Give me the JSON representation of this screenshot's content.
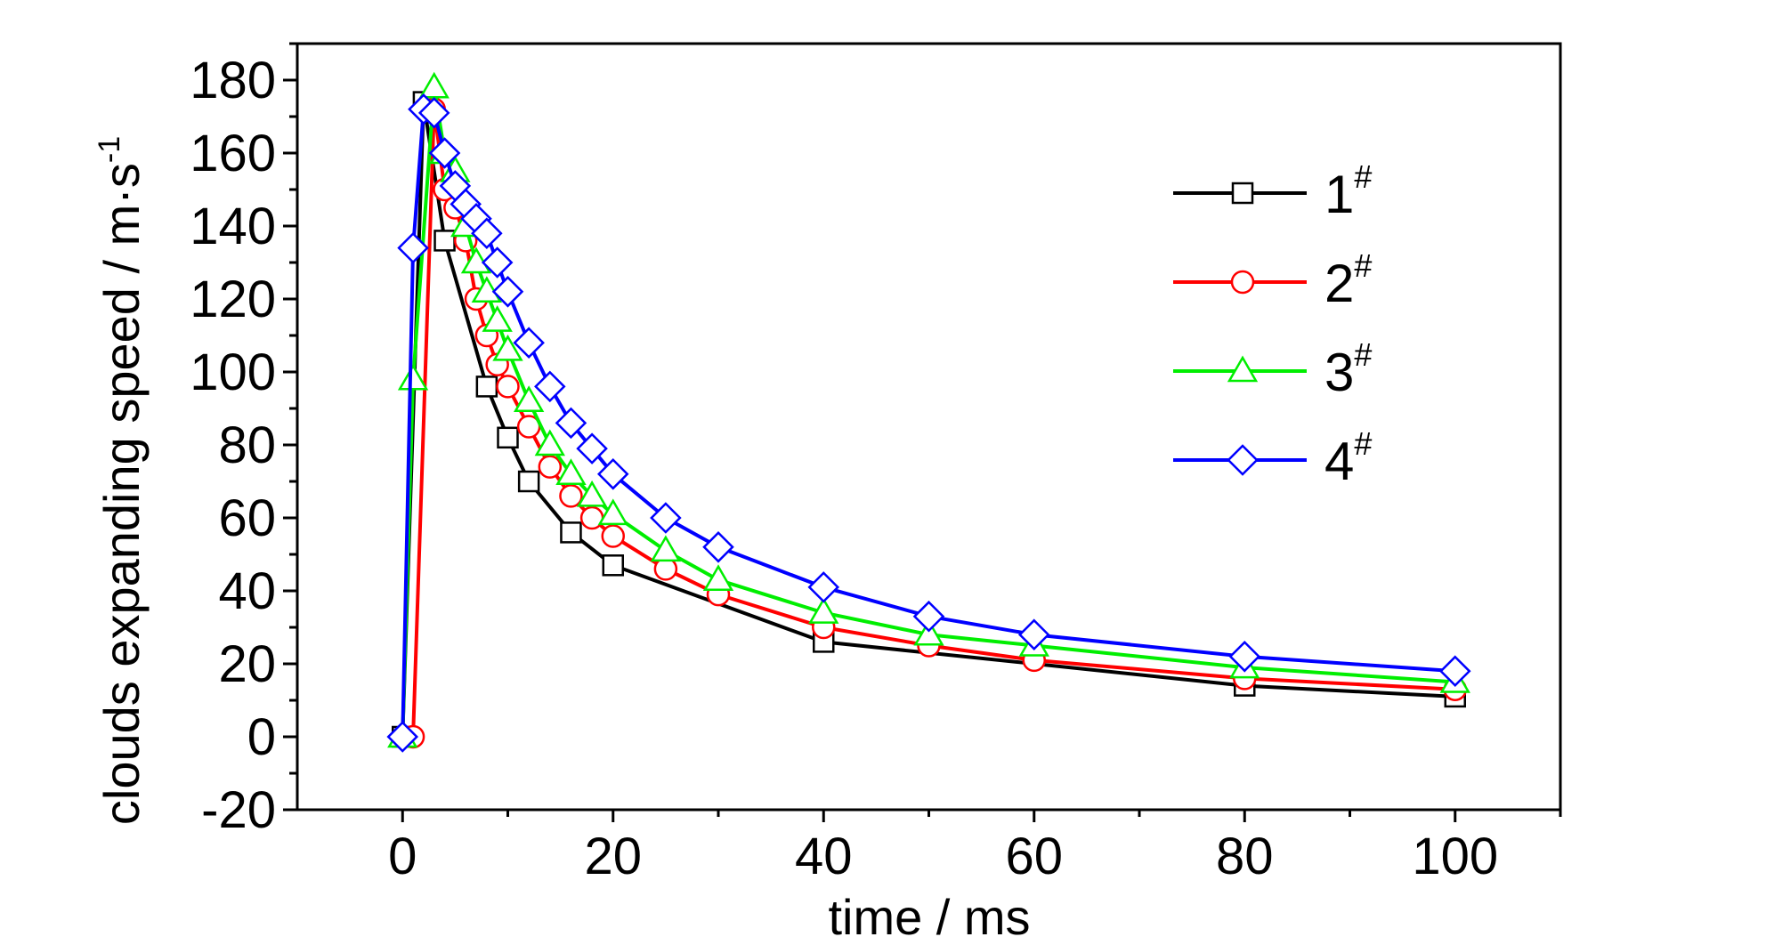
{
  "chart_data": {
    "type": "line",
    "xlabel": "time / ms",
    "ylabel": "clouds expanding speed / m·s",
    "ylabel_superscript": "-1",
    "xlim": [
      -10,
      110
    ],
    "ylim": [
      -20,
      190
    ],
    "xticks": [
      0,
      20,
      40,
      60,
      80,
      100
    ],
    "xtick_labels": [
      "0",
      "20",
      "40",
      "60",
      "80",
      "100"
    ],
    "yticks": [
      -20,
      0,
      20,
      40,
      60,
      80,
      100,
      120,
      140,
      160,
      180
    ],
    "ytick_labels": [
      "-20",
      "0",
      "20",
      "40",
      "60",
      "80",
      "100",
      "120",
      "140",
      "160",
      "180"
    ],
    "grid": false,
    "legend_position": "top-right",
    "series": [
      {
        "name": "1",
        "name_superscript": "#",
        "color": "#000000",
        "marker": "square",
        "x": [
          0,
          2,
          4,
          8,
          10,
          12,
          16,
          20,
          40,
          80,
          100
        ],
        "y": [
          0,
          174,
          136,
          96,
          82,
          70,
          56,
          47,
          26,
          14,
          11
        ]
      },
      {
        "name": "2",
        "name_superscript": "#",
        "color": "#ff0000",
        "marker": "circle",
        "x": [
          1,
          3,
          4,
          5,
          6,
          7,
          8,
          9,
          10,
          12,
          14,
          16,
          18,
          20,
          25,
          30,
          40,
          50,
          60,
          80,
          100
        ],
        "y": [
          0,
          172,
          150,
          145,
          136,
          120,
          110,
          102,
          96,
          85,
          74,
          66,
          60,
          55,
          46,
          39,
          30,
          25,
          21,
          16,
          13
        ]
      },
      {
        "name": "3",
        "name_superscript": "#",
        "color": "#00ee00",
        "marker": "triangle",
        "x": [
          0,
          1,
          3,
          4,
          5,
          6,
          7,
          8,
          9,
          10,
          12,
          14,
          16,
          18,
          20,
          25,
          30,
          40,
          50,
          60,
          80,
          100
        ],
        "y": [
          0,
          98,
          178,
          160,
          155,
          140,
          130,
          122,
          114,
          106,
          92,
          80,
          72,
          66,
          61,
          51,
          43,
          34,
          28,
          25,
          19,
          15
        ]
      },
      {
        "name": "4",
        "name_superscript": "#",
        "color": "#0000ff",
        "marker": "diamond",
        "x": [
          0,
          1,
          2,
          3,
          4,
          5,
          6,
          7,
          8,
          9,
          10,
          12,
          14,
          16,
          18,
          20,
          25,
          30,
          40,
          50,
          60,
          80,
          100
        ],
        "y": [
          0,
          134,
          172,
          171,
          160,
          151,
          146,
          142,
          138,
          130,
          122,
          108,
          96,
          86,
          79,
          72,
          60,
          52,
          41,
          33,
          28,
          22,
          18
        ]
      }
    ]
  }
}
